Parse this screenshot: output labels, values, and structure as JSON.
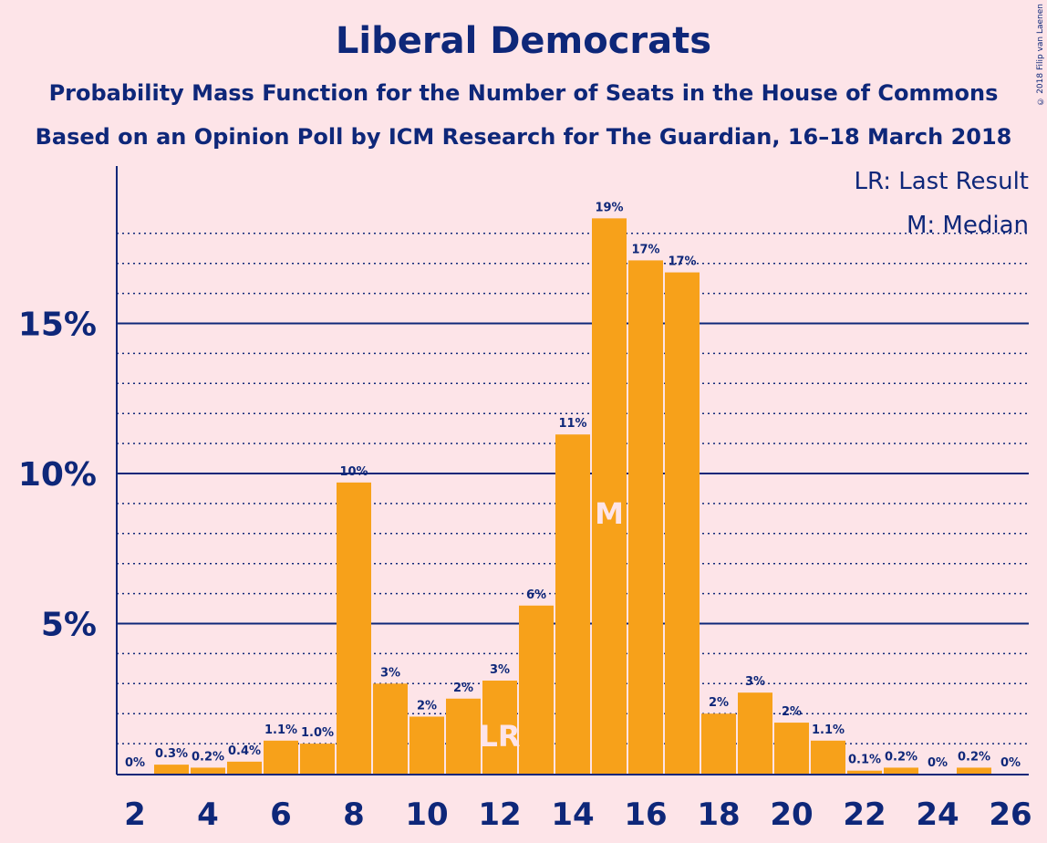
{
  "header": {
    "title": "Liberal Democrats",
    "subtitle": "Probability Mass Function for the Number of Seats in the House of Commons",
    "subtitle2": "Based on an Opinion Poll by ICM Research for The Guardian, 16–18 March 2018",
    "copyright": "© 2018 Filip van Laenen"
  },
  "legend": {
    "last_result": "LR: Last Result",
    "median": "M: Median"
  },
  "colors": {
    "background": "#fde4e8",
    "bar": "#f7a11a",
    "text": "#0e2779",
    "marker_text": "#fde4e8"
  },
  "chart_data": {
    "type": "bar",
    "x": [
      2,
      3,
      4,
      5,
      6,
      7,
      8,
      9,
      10,
      11,
      12,
      13,
      14,
      15,
      16,
      17,
      18,
      19,
      20,
      21,
      22,
      23,
      24,
      25,
      26
    ],
    "values": [
      0,
      0.3,
      0.2,
      0.4,
      1.1,
      1.0,
      9.7,
      3.0,
      1.9,
      2.5,
      3.1,
      5.6,
      11.3,
      18.5,
      17.1,
      16.7,
      2.0,
      2.7,
      1.7,
      1.1,
      0.1,
      0.2,
      0,
      0.2,
      0
    ],
    "labels": [
      "0%",
      "0.3%",
      "0.2%",
      "0.4%",
      "1.1%",
      "1.0%",
      "10%",
      "3%",
      "2%",
      "2%",
      "3%",
      "6%",
      "11%",
      "19%",
      "17%",
      "17%",
      "2%",
      "3%",
      "2%",
      "1.1%",
      "0.1%",
      "0.2%",
      "0%",
      "0.2%",
      "0%"
    ],
    "xticks": [
      "2",
      "4",
      "6",
      "8",
      "10",
      "12",
      "14",
      "16",
      "18",
      "20",
      "22",
      "24",
      "26"
    ],
    "yticks": [
      "5%",
      "10%",
      "15%"
    ],
    "ytick_values": [
      5,
      10,
      15
    ],
    "ylim": [
      0,
      20
    ],
    "last_result": {
      "x": 12,
      "label": "LR"
    },
    "median": {
      "x": 15,
      "label": "M"
    },
    "grid": true
  }
}
